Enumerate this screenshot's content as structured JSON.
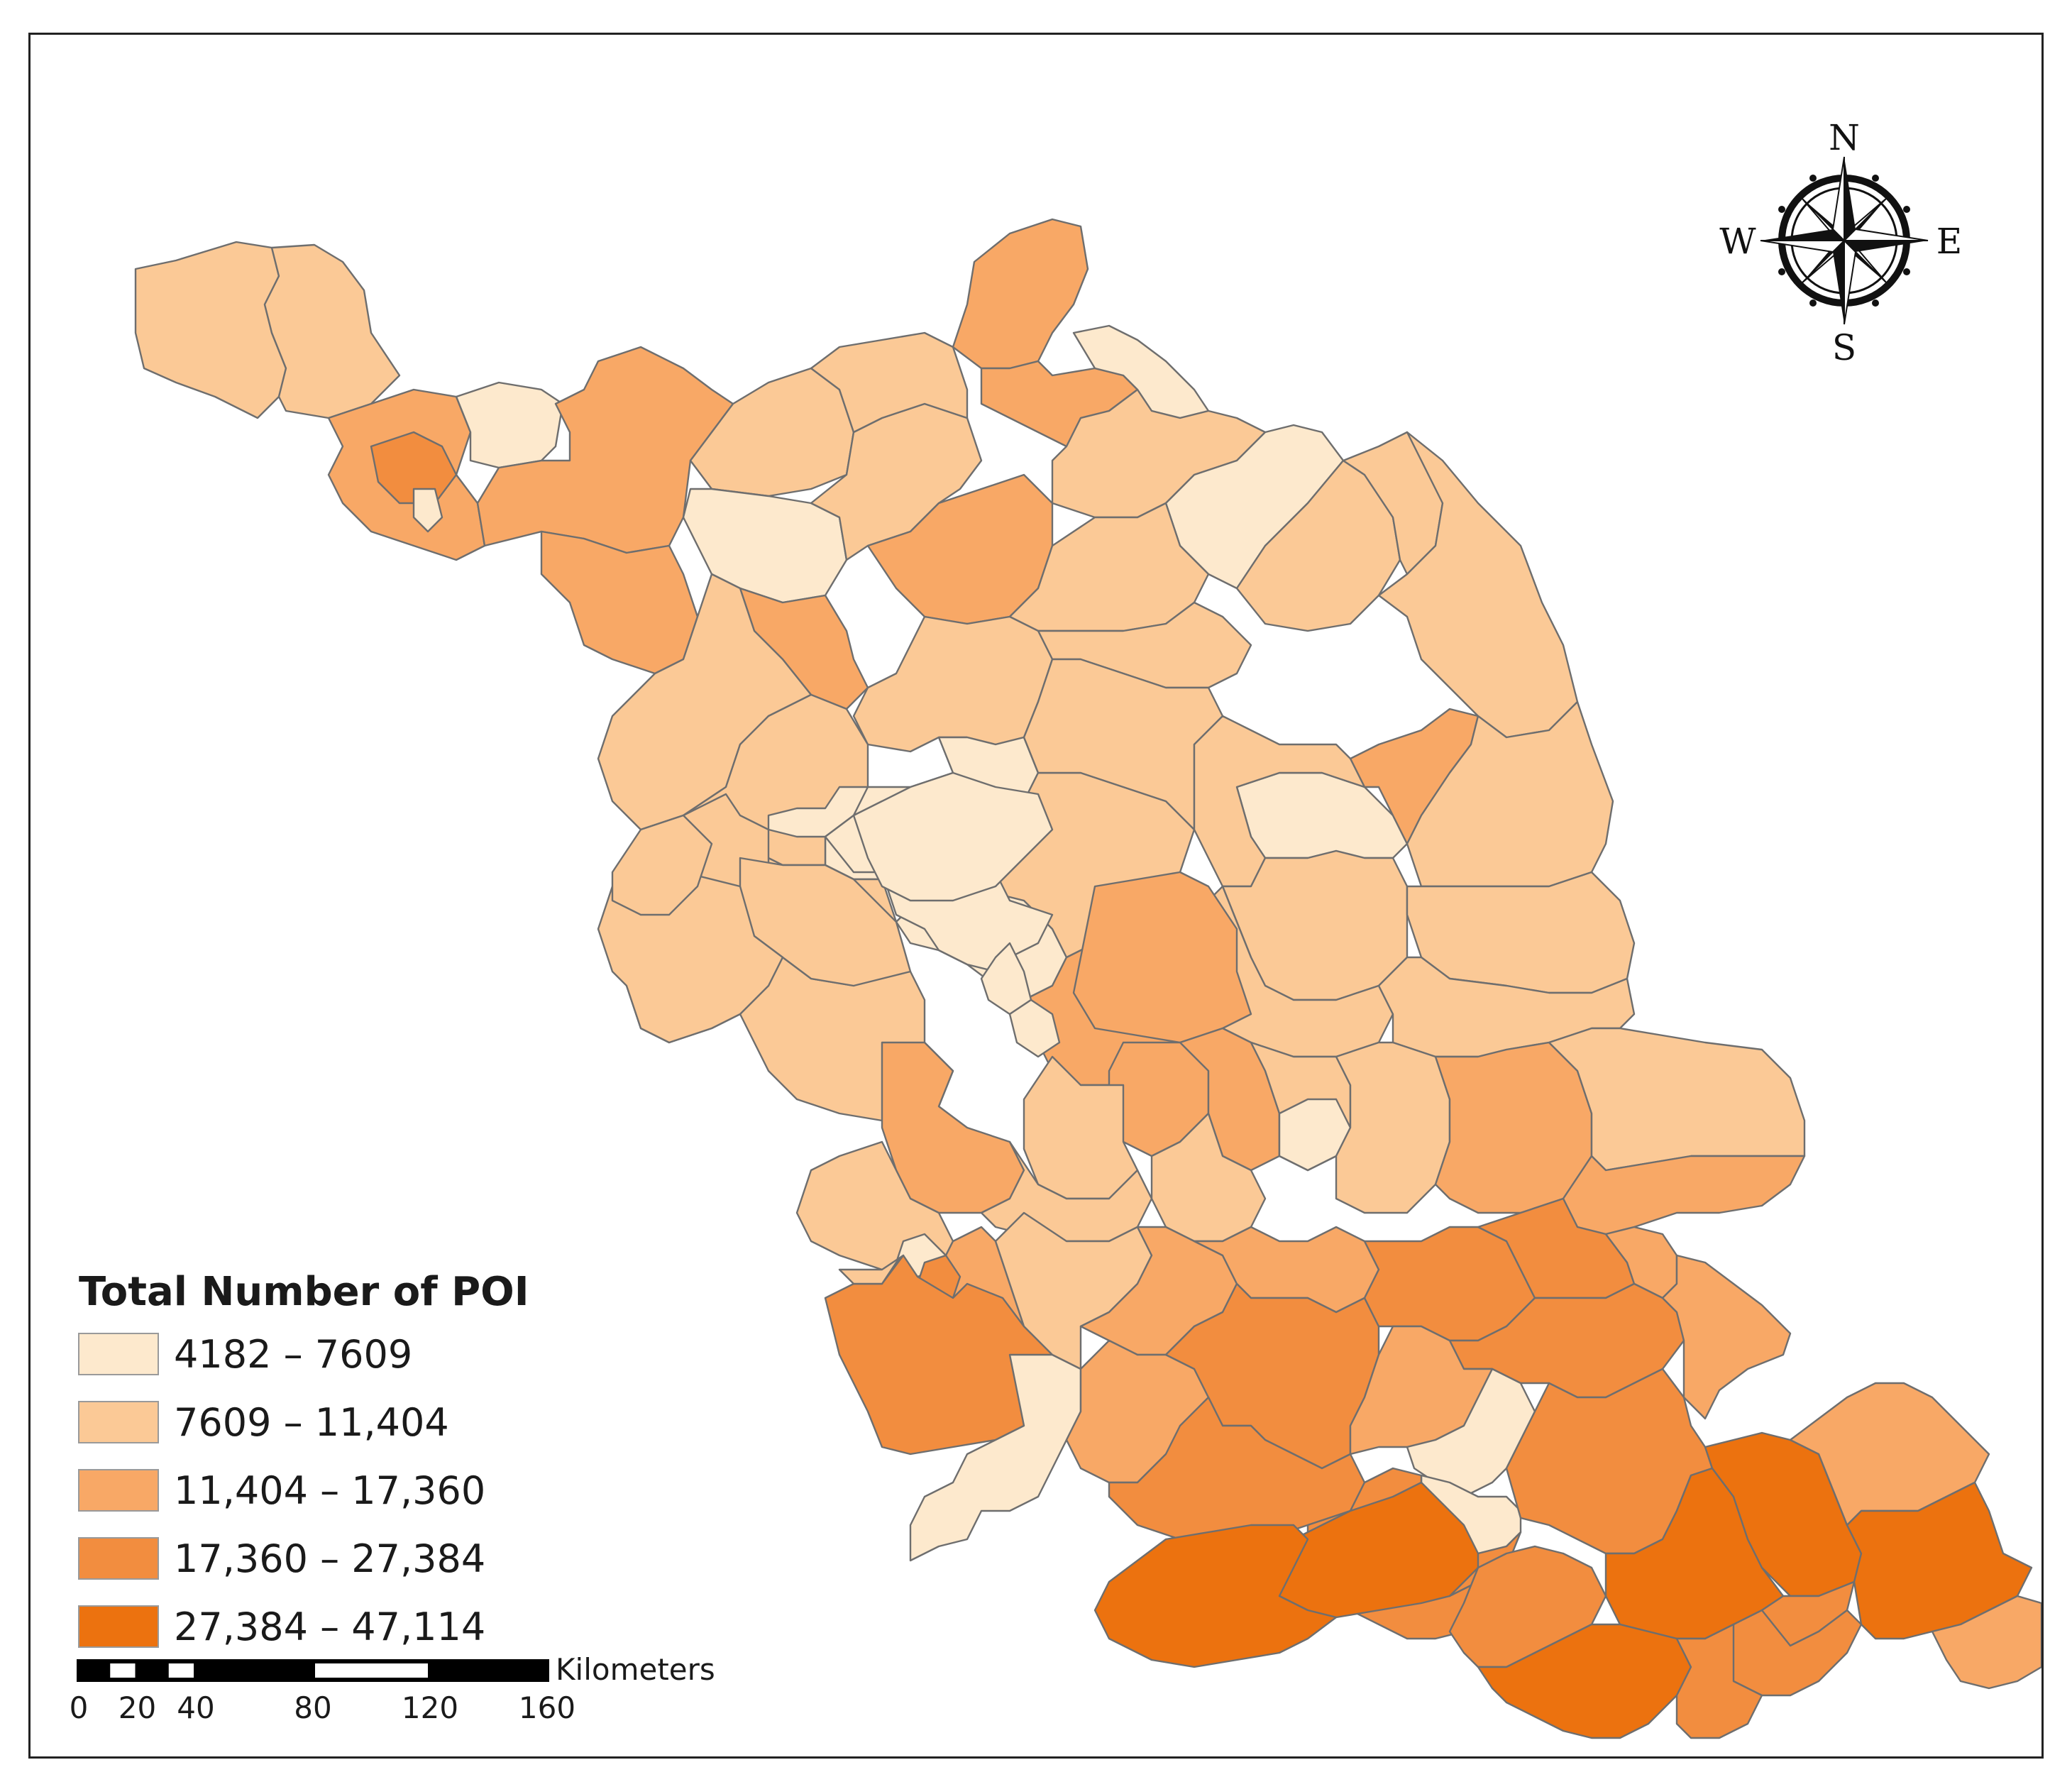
{
  "legend": {
    "title": "Total Number of POI",
    "classes": [
      {
        "label": "4182 – 7609",
        "color": "#fde9cd"
      },
      {
        "label": "7609 – 11,404",
        "color": "#fbc996"
      },
      {
        "label": "11,404 – 17,360",
        "color": "#f8a866"
      },
      {
        "label": "17,360 – 27,384",
        "color": "#f28d3f"
      },
      {
        "label": "27,384 – 47,114",
        "color": "#ec720f"
      }
    ]
  },
  "scale_bar": {
    "unit": "Kilometers",
    "ticks": [
      "0",
      "20",
      "40",
      "80",
      "120",
      "160"
    ]
  },
  "north_arrow": {
    "north": "N",
    "south": "S",
    "east": "E",
    "west": "W"
  }
}
